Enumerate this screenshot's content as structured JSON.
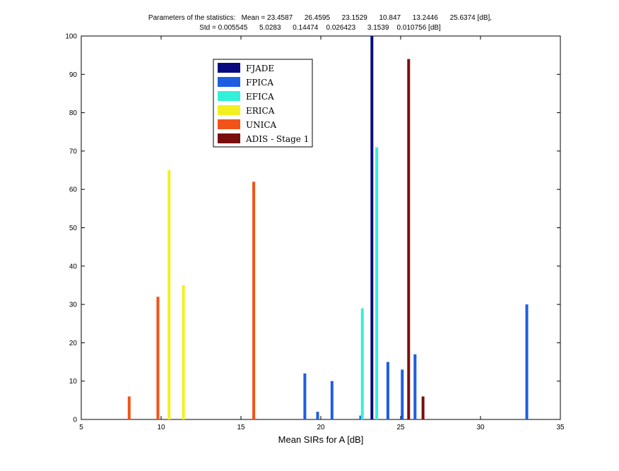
{
  "chart_data": {
    "type": "bar",
    "title_line1": "Parameters of the statistics:   Mean = 23.4587      26.4595      23.1529      10.847      13.2446      25.6374 [dB],",
    "title_line2": "Std = 0.005545      5.0283      0.14474    0.026423      3.1539    0.010756 [dB]",
    "xlabel": "Mean SIRs for A [dB]",
    "ylabel": "",
    "xlim": [
      5,
      35
    ],
    "ylim": [
      0,
      100
    ],
    "xticks": [
      5,
      10,
      15,
      20,
      25,
      30,
      35
    ],
    "yticks": [
      0,
      10,
      20,
      30,
      40,
      50,
      60,
      70,
      80,
      90,
      100
    ],
    "grid": false,
    "legend_position": "upper-center",
    "series": [
      {
        "name": "FJADE",
        "color": "#0a0a80",
        "x": [
          23.2
        ],
        "values": [
          100
        ]
      },
      {
        "name": "FPICA",
        "color": "#1f5ee0",
        "x": [
          19.0,
          19.8,
          20.7,
          22.5,
          24.2,
          25.1,
          25.9,
          32.9
        ],
        "values": [
          12,
          2,
          10,
          1,
          15,
          13,
          17,
          30
        ]
      },
      {
        "name": "EFICA",
        "color": "#33f0d8",
        "x": [
          22.6,
          23.5
        ],
        "values": [
          29,
          71
        ]
      },
      {
        "name": "ERICA",
        "color": "#f2f020",
        "x": [
          10.5,
          11.4
        ],
        "values": [
          65,
          35
        ]
      },
      {
        "name": "UNICA",
        "color": "#f25318",
        "x": [
          8.0,
          9.8,
          15.8
        ],
        "values": [
          6,
          32,
          62
        ]
      },
      {
        "name": "ADIS - Stage 1",
        "color": "#7a0e0e",
        "x": [
          25.5,
          26.4
        ],
        "values": [
          94,
          6
        ]
      }
    ]
  }
}
